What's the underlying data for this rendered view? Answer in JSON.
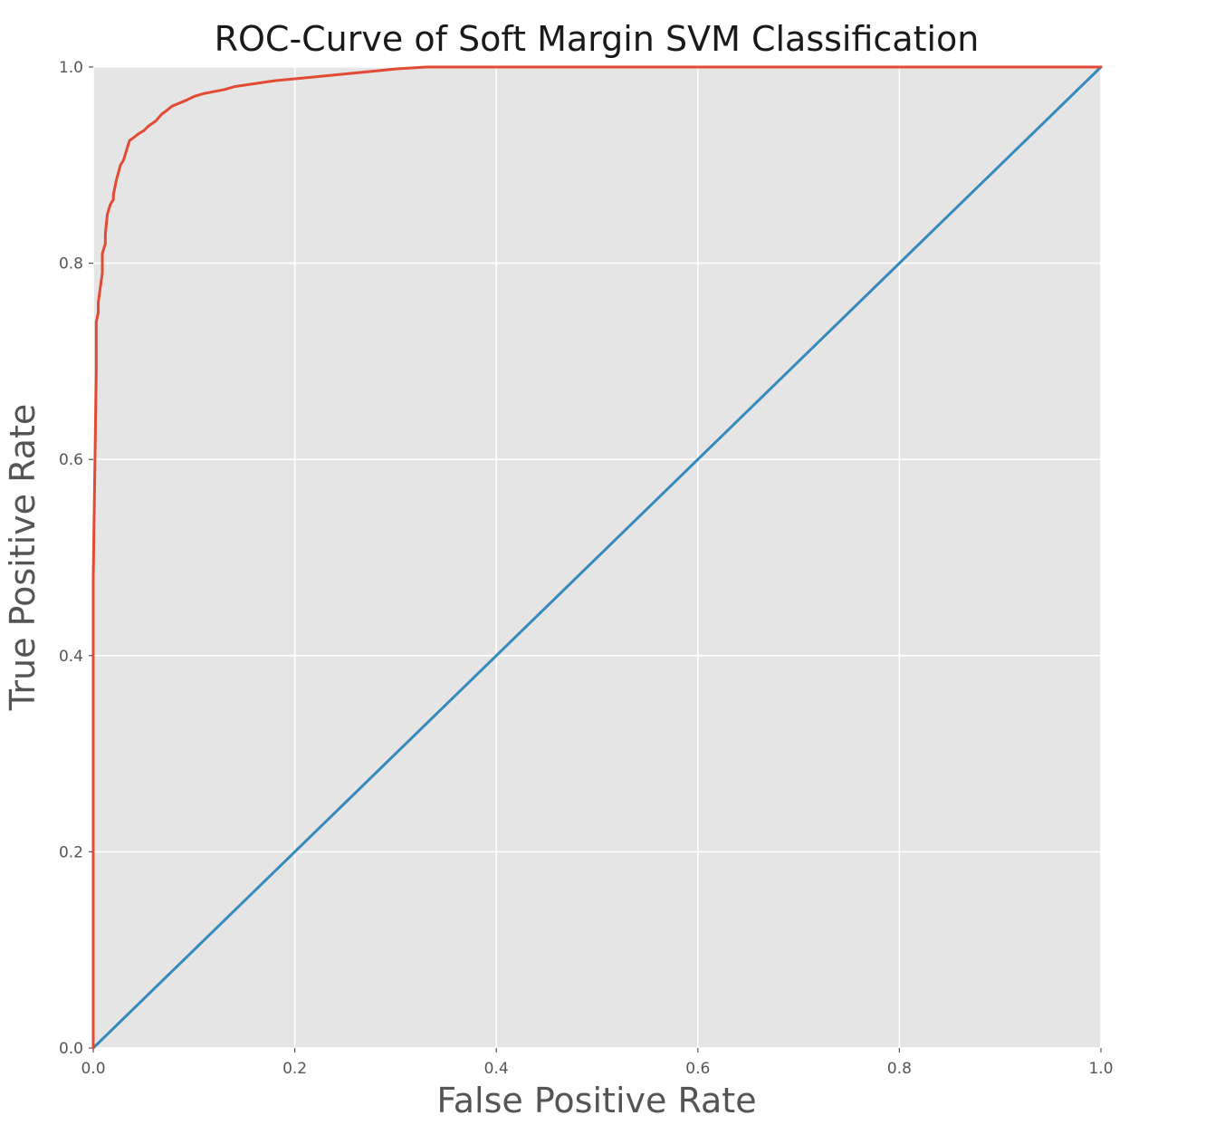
{
  "chart_data": {
    "type": "line",
    "title": "ROC-Curve of Soft Margin SVM Classification",
    "xlabel": "False Positive Rate",
    "ylabel": "True Positive Rate",
    "xlim": [
      0.0,
      1.0
    ],
    "ylim": [
      0.0,
      1.0
    ],
    "xticks": [
      "0.0",
      "0.2",
      "0.4",
      "0.6",
      "0.8",
      "1.0"
    ],
    "yticks": [
      "0.0",
      "0.2",
      "0.4",
      "0.6",
      "0.8",
      "1.0"
    ],
    "grid": true,
    "background": "#e5e5e5",
    "series": [
      {
        "color": "#e24a33",
        "x": [
          0.0,
          0.0,
          0.003,
          0.003,
          0.005,
          0.005,
          0.009,
          0.009,
          0.012,
          0.012,
          0.014,
          0.017,
          0.02,
          0.02,
          0.023,
          0.027,
          0.03,
          0.033,
          0.036,
          0.04,
          0.045,
          0.05,
          0.055,
          0.062,
          0.068,
          0.072,
          0.078,
          0.085,
          0.092,
          0.1,
          0.11,
          0.12,
          0.13,
          0.14,
          0.16,
          0.18,
          0.2,
          0.22,
          0.25,
          0.28,
          0.3,
          0.33,
          0.4,
          0.5,
          0.57,
          0.58,
          0.7,
          0.85,
          1.0
        ],
        "y": [
          0.0,
          0.48,
          0.69,
          0.74,
          0.75,
          0.76,
          0.79,
          0.81,
          0.82,
          0.83,
          0.85,
          0.86,
          0.865,
          0.87,
          0.885,
          0.9,
          0.905,
          0.915,
          0.925,
          0.928,
          0.932,
          0.935,
          0.94,
          0.945,
          0.952,
          0.955,
          0.96,
          0.963,
          0.966,
          0.97,
          0.973,
          0.975,
          0.977,
          0.98,
          0.983,
          0.986,
          0.988,
          0.99,
          0.993,
          0.996,
          0.998,
          1.0,
          1.0,
          1.0,
          1.0,
          1.0,
          1.0,
          1.0,
          1.0
        ]
      },
      {
        "color": "#348abd",
        "x": [
          0.0,
          1.0
        ],
        "y": [
          0.0,
          1.0
        ]
      }
    ]
  }
}
